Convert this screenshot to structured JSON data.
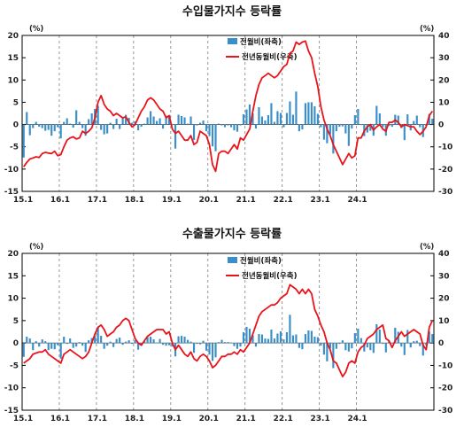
{
  "colors": {
    "bar": "#3b8fc8",
    "line": "#e8141b",
    "grid": "#7f7f7f",
    "axis": "#000000"
  },
  "chart_data": [
    {
      "type": "bar+line",
      "title": "수입물가지수 등락률",
      "left_unit": "(%)",
      "right_unit": "(%)",
      "left_ylim": [
        -15,
        20
      ],
      "right_ylim": [
        -30,
        40
      ],
      "left_ticks": [
        "20",
        "15",
        "10",
        "5",
        "0",
        "-5",
        "-10",
        "-15"
      ],
      "right_ticks": [
        "40",
        "30",
        "20",
        "10",
        "0",
        "-10",
        "-20",
        "-30"
      ],
      "x_tick_labels": [
        "15.1",
        "16.1",
        "17.1",
        "18.1",
        "19.1",
        "20.1",
        "21.1",
        "22.1",
        "23.1",
        "24.1"
      ],
      "grid": "vertical dashed at January of each year",
      "legend": "top-right",
      "series": [
        {
          "name": "전월비(좌축)",
          "axis": "left",
          "type": "bar",
          "values": [
            -7.4,
            2.8,
            -2.4,
            -0.8,
            0.6,
            -0.5,
            -0.8,
            -1.4,
            -1.2,
            -2.5,
            -1.5,
            -0.6,
            -3.1,
            0.6,
            1.4,
            0.2,
            -0.7,
            3.2,
            0.6,
            -0.8,
            -2.5,
            1.2,
            2.5,
            3.5,
            4.2,
            -1.2,
            -2.2,
            -2.0,
            0.4,
            -1.0,
            1.3,
            -1.0,
            1.4,
            2.2,
            1.5,
            0.4,
            0.7,
            -1.3,
            -0.5,
            0.2,
            1.6,
            3.0,
            1.8,
            0.8,
            1.4,
            -0.9,
            2.0,
            2.0,
            -0.1,
            -5.4,
            2.2,
            1.9,
            1.6,
            0.2,
            1.8,
            -3.5,
            -0.2,
            0.4,
            0.9,
            -1.5,
            -2.6,
            -4.9,
            -6.0,
            0.2,
            -0.2,
            -0.6,
            -0.2,
            -0.6,
            -1.3,
            -1.6,
            -0.2,
            2.3,
            3.4,
            4.5,
            2.5,
            -0.9,
            3.9,
            1.8,
            0.9,
            2.1,
            4.8,
            0.6,
            3.0,
            2.6,
            -0.6,
            2.6,
            5.2,
            2.2,
            7.4,
            -1.5,
            -1.1,
            4.8,
            5.0,
            5.0,
            4.1,
            2.4,
            -0.6,
            -3.4,
            -4.2,
            -2.2,
            -6.5,
            -1.5,
            -0.5,
            -0.4,
            -2.0,
            -4.8,
            -0.9,
            2.1,
            3.5,
            -0.1,
            -2.6,
            -1.8,
            -1.4,
            -2.5,
            4.2,
            2.5,
            -0.6,
            -2.5,
            -0.3,
            -0.5,
            2.2,
            2.0,
            -0.8,
            -3.5,
            2.3,
            -1.3,
            0.8,
            2.0,
            -0.6,
            -2.8,
            -0.3,
            2.4,
            1.3
          ]
        },
        {
          "name": "전년동월비(우축)",
          "axis": "right",
          "type": "line",
          "values": [
            -19,
            -17,
            -15.5,
            -15,
            -14.5,
            -14.8,
            -13,
            -12.5,
            -12.8,
            -13,
            -12,
            -14,
            -13.5,
            -10,
            -7,
            -6,
            -5.5,
            -6.5,
            -6,
            -3,
            -4,
            -3,
            -1.5,
            3,
            10,
            13,
            9,
            7,
            6,
            4,
            5,
            4,
            3,
            3.5,
            1,
            -1,
            0,
            3,
            6,
            8,
            11,
            12,
            11,
            9,
            7,
            6,
            3,
            4,
            -2,
            -4,
            -3,
            -5,
            -7,
            -7,
            -5,
            -9,
            -8,
            -3,
            -4,
            -5,
            -9,
            -18,
            -21,
            -13,
            -12,
            -12,
            -13,
            -11,
            -9,
            -11,
            -6,
            -7,
            -4.5,
            -2,
            6,
            13,
            18,
            21,
            22,
            23,
            22,
            21,
            22,
            24,
            26,
            27,
            32,
            33,
            37,
            36,
            37,
            37.5,
            33,
            30,
            23,
            17,
            8,
            2,
            -2,
            -5,
            -9,
            -12,
            -15,
            -18,
            -15.5,
            -13,
            -15,
            -14,
            -6,
            -6,
            -3,
            -1,
            0,
            -2.5,
            -1,
            0,
            -2,
            -3,
            1,
            1,
            2,
            1,
            -1,
            0,
            -0.5,
            -1,
            -1,
            -3,
            -4.5,
            -3,
            -1,
            4,
            6
          ]
        }
      ]
    },
    {
      "type": "bar+line",
      "title": "수출물가지수 등락률",
      "left_unit": "(%)",
      "right_unit": "(%)",
      "left_ylim": [
        -15,
        20
      ],
      "right_ylim": [
        -30,
        40
      ],
      "left_ticks": [
        "20",
        "15",
        "10",
        "5",
        "0",
        "-5",
        "-10",
        "-15"
      ],
      "right_ticks": [
        "40",
        "30",
        "20",
        "10",
        "0",
        "-10",
        "-20",
        "-30"
      ],
      "x_tick_labels": [
        "15.1",
        "16.1",
        "17.1",
        "18.1",
        "19.1",
        "20.1",
        "21.1",
        "22.1",
        "23.1",
        "24.1"
      ],
      "grid": "vertical dashed at January of each year",
      "legend": "top-right",
      "series": [
        {
          "name": "전월비(좌축)",
          "axis": "left",
          "type": "bar",
          "values": [
            -3.1,
            1.4,
            1.0,
            -1.6,
            0.4,
            -0.8,
            0.8,
            0.4,
            -1.6,
            -1.3,
            -1.4,
            -0.5,
            -3.5,
            1.4,
            -0.2,
            1.0,
            -1.1,
            -0.8,
            0.2,
            -0.6,
            -2.0,
            0.6,
            1.1,
            1.6,
            3.6,
            1.6,
            -1.3,
            -0.6,
            0.3,
            -0.9,
            0.9,
            1.2,
            -0.4,
            0.3,
            0.6,
            -0.2,
            0.6,
            -1.5,
            -0.6,
            0.4,
            1.3,
            1.4,
            0.8,
            0.1,
            0.9,
            -0.4,
            -0.6,
            -0.5,
            -0.8,
            -3.0,
            1.5,
            1.6,
            1.4,
            0.7,
            0.3,
            -2.2,
            -0.2,
            -0.3,
            0.5,
            -1.7,
            -2.6,
            -4.0,
            -3.2,
            0.2,
            0.7,
            0.2,
            0.2,
            0.1,
            -0.7,
            -1.3,
            -0.8,
            2.4,
            3.6,
            3.2,
            1.8,
            -0.8,
            2.0,
            1.9,
            1.0,
            0.9,
            3.0,
            1.0,
            2.1,
            2.6,
            0.8,
            2.4,
            6.3,
            1.7,
            1.9,
            -1.1,
            -1.4,
            2.0,
            2.8,
            2.7,
            1.4,
            1.3,
            -0.6,
            -2.6,
            -4.1,
            -1.2,
            -5.6,
            -1.3,
            -0.2,
            0.6,
            -1.6,
            -1.9,
            -1.2,
            2.2,
            3.2,
            1.1,
            -1.9,
            -1.0,
            -1.6,
            -2.2,
            4.2,
            3.0,
            -0.2,
            -2.1,
            0.5,
            -0.1,
            3.4,
            2.5,
            -0.8,
            -2.7,
            2.9,
            -1.0,
            0.4,
            0.5,
            -0.7,
            -2.8,
            -0.5,
            2.6,
            2.0
          ]
        },
        {
          "name": "전년동월비(우축)",
          "axis": "right",
          "type": "line",
          "values": [
            -9,
            -8,
            -7,
            -5,
            -4.5,
            -4,
            -4,
            -3,
            -5,
            -6,
            -7,
            -8,
            -9,
            -5,
            -4,
            -3,
            -4,
            -5,
            -6,
            -7,
            -6,
            -4,
            0,
            4,
            7,
            8,
            6,
            3,
            4,
            5,
            7,
            8,
            10,
            11,
            10,
            6,
            2,
            0,
            -1,
            1,
            3,
            4,
            5,
            6,
            6,
            6,
            4,
            5,
            0,
            -3,
            -1,
            -3,
            -5,
            -6,
            -4,
            -7,
            -8,
            -6,
            -5,
            -6,
            -8,
            -11,
            -10,
            -8,
            -6,
            -6,
            -5,
            -5,
            -4,
            -5,
            -3,
            -4,
            -2,
            0,
            4,
            8,
            12,
            14,
            15,
            16,
            17,
            17,
            18,
            20,
            21,
            22,
            26,
            25,
            24,
            22,
            24,
            22,
            24,
            22,
            15,
            12,
            8,
            5,
            0,
            -3,
            -8,
            -9,
            -12,
            -15,
            -13,
            -9,
            -8,
            -9,
            -4,
            -2,
            -1,
            2,
            3,
            4,
            6,
            7,
            8,
            2,
            1,
            -2,
            1,
            3,
            5,
            3,
            4,
            5,
            6,
            5,
            4,
            -1,
            -3,
            7,
            10
          ]
        }
      ]
    }
  ]
}
